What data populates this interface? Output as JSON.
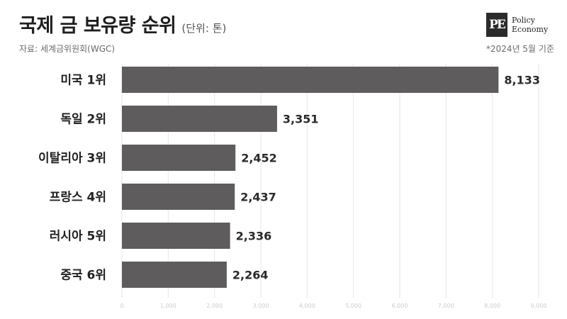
{
  "header": {
    "title": "국제 금 보유량 순위",
    "unit": "(단위: 톤)",
    "source": "자료: 세계금위원회(WGC)",
    "note": "*2024년 5월 기준"
  },
  "logo": {
    "mark": "PE",
    "line1": "Policy",
    "line2": "Economy"
  },
  "colors": {
    "bar": "#5e5c5d",
    "grid": "#e6e6e6",
    "text": "#222222"
  },
  "chart_data": {
    "type": "bar",
    "orientation": "horizontal",
    "title": "국제 금 보유량 순위",
    "categories": [
      "미국 1위",
      "독일 2위",
      "이탈리아 3위",
      "프랑스 4위",
      "러시아 5위",
      "중국 6위"
    ],
    "values": [
      8133,
      3351,
      2452,
      2437,
      2336,
      2264
    ],
    "value_labels": [
      "8,133",
      "3,351",
      "2,452",
      "2,437",
      "2,336",
      "2,264"
    ],
    "xlim": [
      0,
      9000
    ],
    "xticks": [
      "0",
      "1,000",
      "2,000",
      "3,000",
      "4,000",
      "5,000",
      "6,000",
      "7,000",
      "8,000",
      "9,000"
    ],
    "grid": true
  }
}
